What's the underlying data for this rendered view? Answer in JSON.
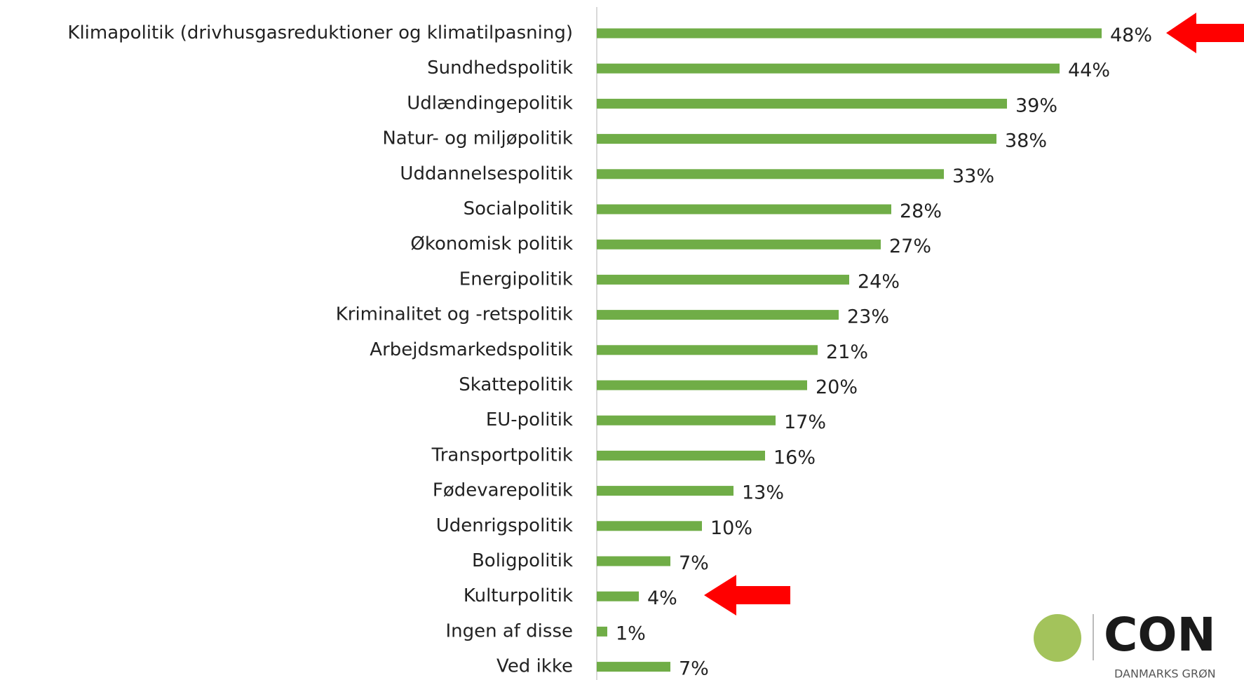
{
  "chart_data": {
    "type": "hbar",
    "categories": [
      "Klimapolitik (drivhusgasreduktioner og klimatilpasning)",
      "Sundhedspolitik",
      "Udlændingepolitik",
      "Natur- og miljøpolitik",
      "Uddannelsespolitik",
      "Socialpolitik",
      "Økonomisk politik",
      "Energipolitik",
      "Kriminalitet og -retspolitik",
      "Arbejdsmarkedspolitik",
      "Skattepolitik",
      "EU-politik",
      "Transportpolitik",
      "Fødevarepolitik",
      "Udenrigspolitik",
      "Boligpolitik",
      "Kulturpolitik",
      "Ingen af disse",
      "Ved ikke"
    ],
    "values": [
      48,
      44,
      39,
      38,
      33,
      28,
      27,
      24,
      23,
      21,
      20,
      17,
      16,
      13,
      10,
      7,
      4,
      1,
      7
    ],
    "value_labels": [
      "48%",
      "44%",
      "39%",
      "38%",
      "33%",
      "28%",
      "27%",
      "24%",
      "23%",
      "21%",
      "20%",
      "17%",
      "16%",
      "13%",
      "10%",
      "7%",
      "4%",
      "1%",
      "7%"
    ],
    "color": "#70ad47",
    "xlim": [
      0,
      50
    ]
  },
  "logo": {
    "name": "CON",
    "tagline": "DANMARKS GRØN"
  }
}
